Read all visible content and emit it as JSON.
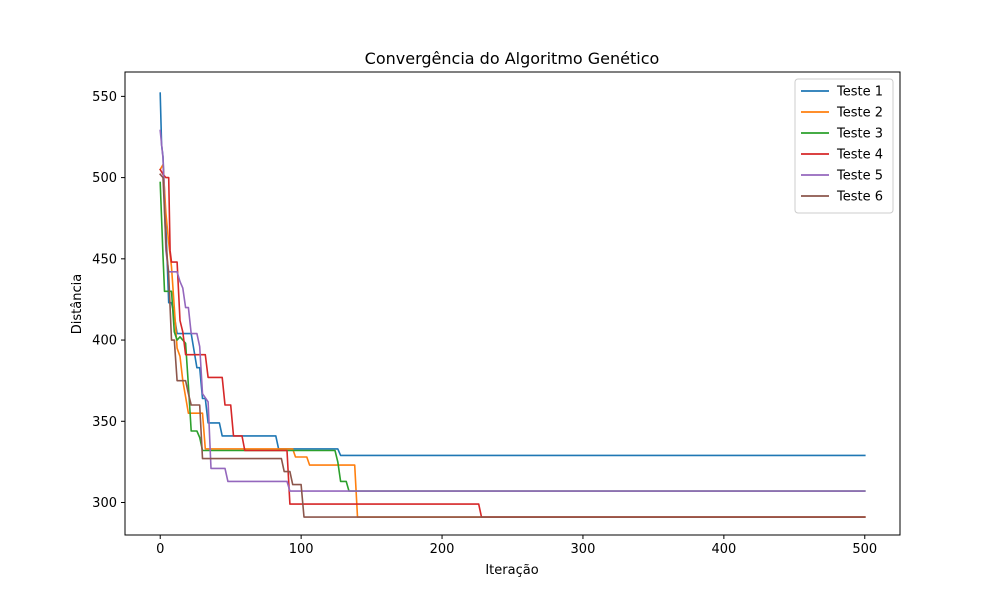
{
  "chart_data": {
    "type": "line",
    "title": "Convergência do Algoritmo Genético",
    "xlabel": "Iteração",
    "ylabel": "Distância",
    "xlim": [
      -25,
      525
    ],
    "ylim": [
      280,
      565
    ],
    "xticks": [
      0,
      100,
      200,
      300,
      400,
      500
    ],
    "yticks": [
      300,
      350,
      400,
      450,
      500,
      550
    ],
    "grid": false,
    "legend_position": "top-right",
    "series": [
      {
        "name": "Teste 1",
        "color": "#1f77b4",
        "points": [
          [
            0,
            552
          ],
          [
            1,
            520
          ],
          [
            2,
            513
          ],
          [
            4,
            470
          ],
          [
            6,
            423
          ],
          [
            8,
            423
          ],
          [
            10,
            415
          ],
          [
            12,
            404
          ],
          [
            22,
            404
          ],
          [
            26,
            383
          ],
          [
            28,
            383
          ],
          [
            30,
            364
          ],
          [
            32,
            364
          ],
          [
            34,
            349
          ],
          [
            42,
            349
          ],
          [
            44,
            341
          ],
          [
            82,
            341
          ],
          [
            84,
            333
          ],
          [
            126,
            333
          ],
          [
            128,
            329
          ],
          [
            500,
            329
          ]
        ]
      },
      {
        "name": "Teste 2",
        "color": "#ff7f0e",
        "points": [
          [
            0,
            505
          ],
          [
            2,
            508
          ],
          [
            4,
            478
          ],
          [
            6,
            460
          ],
          [
            8,
            445
          ],
          [
            10,
            420
          ],
          [
            12,
            395
          ],
          [
            14,
            390
          ],
          [
            16,
            375
          ],
          [
            18,
            365
          ],
          [
            20,
            355
          ],
          [
            30,
            355
          ],
          [
            32,
            333
          ],
          [
            94,
            333
          ],
          [
            96,
            328
          ],
          [
            104,
            328
          ],
          [
            106,
            323
          ],
          [
            138,
            323
          ],
          [
            140,
            291
          ],
          [
            500,
            291
          ]
        ]
      },
      {
        "name": "Teste 3",
        "color": "#2ca02c",
        "points": [
          [
            0,
            497
          ],
          [
            2,
            452
          ],
          [
            3,
            430
          ],
          [
            8,
            430
          ],
          [
            10,
            405
          ],
          [
            12,
            400
          ],
          [
            14,
            402
          ],
          [
            16,
            400
          ],
          [
            18,
            398
          ],
          [
            20,
            372
          ],
          [
            22,
            344
          ],
          [
            26,
            344
          ],
          [
            28,
            340
          ],
          [
            30,
            332
          ],
          [
            124,
            332
          ],
          [
            126,
            325
          ],
          [
            128,
            313
          ],
          [
            132,
            313
          ],
          [
            134,
            307
          ],
          [
            500,
            307
          ]
        ]
      },
      {
        "name": "Teste 4",
        "color": "#d62728",
        "points": [
          [
            0,
            505
          ],
          [
            2,
            502
          ],
          [
            4,
            500
          ],
          [
            6,
            500
          ],
          [
            7,
            455
          ],
          [
            8,
            448
          ],
          [
            12,
            448
          ],
          [
            14,
            412
          ],
          [
            16,
            405
          ],
          [
            18,
            391
          ],
          [
            32,
            391
          ],
          [
            34,
            377
          ],
          [
            44,
            377
          ],
          [
            46,
            360
          ],
          [
            50,
            360
          ],
          [
            52,
            341
          ],
          [
            58,
            341
          ],
          [
            60,
            332
          ],
          [
            90,
            332
          ],
          [
            92,
            299
          ],
          [
            226,
            299
          ],
          [
            228,
            291
          ],
          [
            500,
            291
          ]
        ]
      },
      {
        "name": "Teste 5",
        "color": "#9467bd",
        "points": [
          [
            0,
            529
          ],
          [
            2,
            512
          ],
          [
            4,
            455
          ],
          [
            6,
            442
          ],
          [
            12,
            442
          ],
          [
            14,
            436
          ],
          [
            16,
            432
          ],
          [
            18,
            420
          ],
          [
            20,
            420
          ],
          [
            22,
            404
          ],
          [
            26,
            404
          ],
          [
            28,
            396
          ],
          [
            30,
            367
          ],
          [
            34,
            362
          ],
          [
            36,
            321
          ],
          [
            46,
            321
          ],
          [
            48,
            313
          ],
          [
            90,
            313
          ],
          [
            92,
            307
          ],
          [
            500,
            307
          ]
        ]
      },
      {
        "name": "Teste 6",
        "color": "#8c564b",
        "points": [
          [
            0,
            502
          ],
          [
            2,
            500
          ],
          [
            4,
            460
          ],
          [
            6,
            440
          ],
          [
            8,
            400
          ],
          [
            10,
            400
          ],
          [
            12,
            375
          ],
          [
            18,
            375
          ],
          [
            20,
            367
          ],
          [
            22,
            360
          ],
          [
            28,
            360
          ],
          [
            30,
            327
          ],
          [
            86,
            327
          ],
          [
            88,
            319
          ],
          [
            92,
            319
          ],
          [
            94,
            311
          ],
          [
            100,
            311
          ],
          [
            102,
            291
          ],
          [
            500,
            291
          ]
        ]
      }
    ]
  }
}
